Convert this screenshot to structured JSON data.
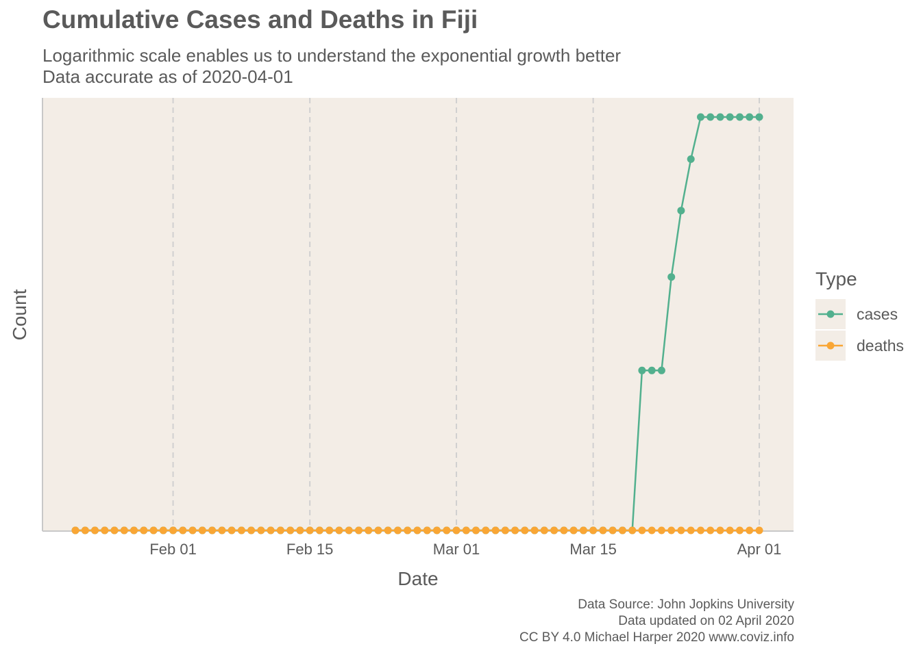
{
  "title": "Cumulative Cases and Deaths in Fiji",
  "subtitle_lines": [
    "Logarithmic scale enables us to understand the exponential growth better",
    "Data accurate as of 2020-04-01"
  ],
  "caption_lines": [
    "Data Source: John Jopkins University",
    "Data updated on 02 April 2020",
    "CC BY 4.0 Michael Harper 2020 www.coviz.info"
  ],
  "colors": {
    "panel_bg": "#f3ede6",
    "grid": "#d0d0d0",
    "axis": "#c8c8c8",
    "cases": "#52b08e",
    "deaths": "#f9a635",
    "text": "#5a5a5a"
  },
  "chart_data": {
    "type": "line",
    "title": "Cumulative Cases and Deaths in Fiji",
    "xlabel": "Date",
    "ylabel": "Count",
    "y_scale": "log",
    "x_ticks": [
      "Feb 01",
      "Feb 15",
      "Mar 01",
      "Mar 15",
      "Apr 01"
    ],
    "x_tick_dates": [
      "2020-02-01",
      "2020-02-15",
      "2020-03-01",
      "2020-03-15",
      "2020-04-01"
    ],
    "x_range": [
      "2020-01-22",
      "2020-04-01"
    ],
    "grid": "vertical dashed at x ticks",
    "legend_title": "Type",
    "legend_position": "right",
    "x": [
      "2020-01-22",
      "2020-01-23",
      "2020-01-24",
      "2020-01-25",
      "2020-01-26",
      "2020-01-27",
      "2020-01-28",
      "2020-01-29",
      "2020-01-30",
      "2020-01-31",
      "2020-02-01",
      "2020-02-02",
      "2020-02-03",
      "2020-02-04",
      "2020-02-05",
      "2020-02-06",
      "2020-02-07",
      "2020-02-08",
      "2020-02-09",
      "2020-02-10",
      "2020-02-11",
      "2020-02-12",
      "2020-02-13",
      "2020-02-14",
      "2020-02-15",
      "2020-02-16",
      "2020-02-17",
      "2020-02-18",
      "2020-02-19",
      "2020-02-20",
      "2020-02-21",
      "2020-02-22",
      "2020-02-23",
      "2020-02-24",
      "2020-02-25",
      "2020-02-26",
      "2020-02-27",
      "2020-02-28",
      "2020-02-29",
      "2020-03-01",
      "2020-03-02",
      "2020-03-03",
      "2020-03-04",
      "2020-03-05",
      "2020-03-06",
      "2020-03-07",
      "2020-03-08",
      "2020-03-09",
      "2020-03-10",
      "2020-03-11",
      "2020-03-12",
      "2020-03-13",
      "2020-03-14",
      "2020-03-15",
      "2020-03-16",
      "2020-03-17",
      "2020-03-18",
      "2020-03-19",
      "2020-03-20",
      "2020-03-21",
      "2020-03-22",
      "2020-03-23",
      "2020-03-24",
      "2020-03-25",
      "2020-03-26",
      "2020-03-27",
      "2020-03-28",
      "2020-03-29",
      "2020-03-30",
      "2020-03-31",
      "2020-04-01"
    ],
    "series": [
      {
        "name": "cases",
        "color": "#52b08e",
        "values": [
          0,
          0,
          0,
          0,
          0,
          0,
          0,
          0,
          0,
          0,
          0,
          0,
          0,
          0,
          0,
          0,
          0,
          0,
          0,
          0,
          0,
          0,
          0,
          0,
          0,
          0,
          0,
          0,
          0,
          0,
          0,
          0,
          0,
          0,
          0,
          0,
          0,
          0,
          0,
          0,
          0,
          0,
          0,
          0,
          0,
          0,
          0,
          0,
          0,
          0,
          0,
          0,
          0,
          0,
          0,
          0,
          0,
          0,
          1,
          1,
          1,
          2,
          3,
          4,
          5,
          5,
          5,
          5,
          5,
          5,
          5
        ]
      },
      {
        "name": "deaths",
        "color": "#f9a635",
        "values": [
          0,
          0,
          0,
          0,
          0,
          0,
          0,
          0,
          0,
          0,
          0,
          0,
          0,
          0,
          0,
          0,
          0,
          0,
          0,
          0,
          0,
          0,
          0,
          0,
          0,
          0,
          0,
          0,
          0,
          0,
          0,
          0,
          0,
          0,
          0,
          0,
          0,
          0,
          0,
          0,
          0,
          0,
          0,
          0,
          0,
          0,
          0,
          0,
          0,
          0,
          0,
          0,
          0,
          0,
          0,
          0,
          0,
          0,
          0,
          0,
          0,
          0,
          0,
          0,
          0,
          0,
          0,
          0,
          0,
          0,
          0
        ]
      }
    ]
  }
}
